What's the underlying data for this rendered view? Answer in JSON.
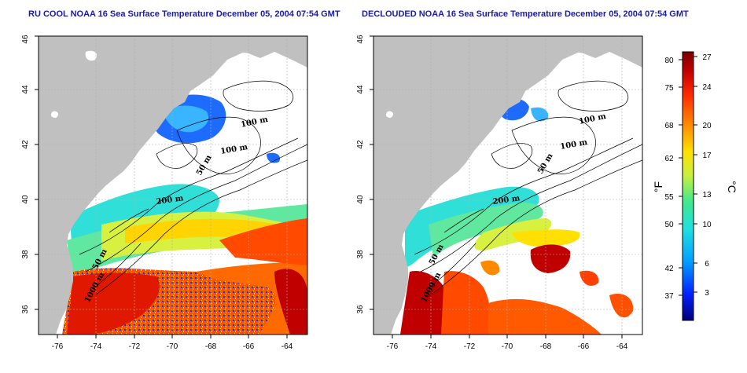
{
  "panels": [
    {
      "id": "left",
      "title": "RU COOL NOAA 16 Sea Surface Temperature December 05, 2004 07:54 GMT",
      "isobath_labels": [
        "100 m",
        "100 m",
        "50 m",
        "200 m",
        "50 m",
        "1000 m"
      ]
    },
    {
      "id": "right",
      "title": "DECLOUDED NOAA 16 Sea Surface Temperature December 05, 2004 07:54 GMT",
      "isobath_labels": [
        "100 m",
        "100 m",
        "50 m",
        "200 m",
        "50 m",
        "1000 m"
      ]
    }
  ],
  "axes": {
    "x_ticks": [
      "-76",
      "-74",
      "-72",
      "-70",
      "-68",
      "-66",
      "-64"
    ],
    "y_ticks": [
      "36",
      "38",
      "40",
      "42",
      "44",
      "46"
    ]
  },
  "colorbar": {
    "unit_f": "°F",
    "unit_c": "°C",
    "f_ticks": [
      "80",
      "75",
      "68",
      "62",
      "55",
      "50",
      "42",
      "37"
    ],
    "c_ticks": [
      "27",
      "24",
      "20",
      "17",
      "13",
      "10",
      "6",
      "3"
    ],
    "colors": [
      "#00007a",
      "#0022ff",
      "#00a0ff",
      "#20e0e0",
      "#40e890",
      "#c8f040",
      "#ffe000",
      "#ff8a00",
      "#ff2a00",
      "#c00000",
      "#7a0000"
    ]
  },
  "map_colors": {
    "land": "#c0c0c0",
    "no_data": "#ffffff",
    "contour": "#000000",
    "grid": "#b0b0b0"
  }
}
